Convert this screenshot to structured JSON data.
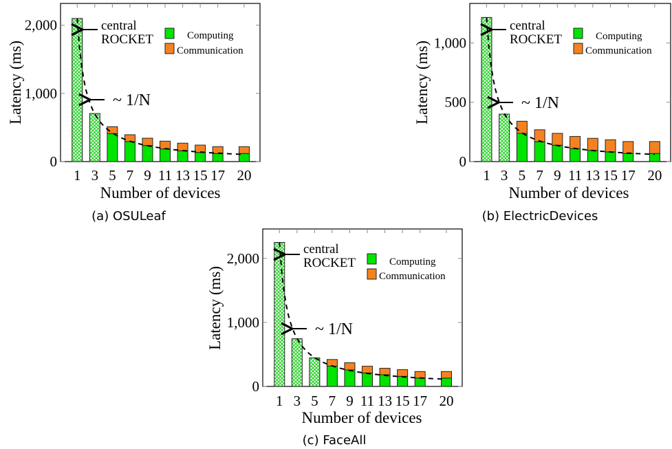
{
  "colors": {
    "computing": "#00e400",
    "communication": "#f58220",
    "hatch": "#2ad42a",
    "edge": "#222222"
  },
  "chart_data": [
    {
      "type": "bar",
      "stacked": true,
      "caption": "(a) OSULeaf",
      "xlabel": "Number of devices",
      "ylabel": "Latency (ms)",
      "categories": [
        "1",
        "3",
        "5",
        "7",
        "9",
        "11",
        "13",
        "15",
        "17",
        "20"
      ],
      "x": [
        1,
        3,
        5,
        7,
        9,
        11,
        13,
        15,
        17,
        20
      ],
      "xlim": [
        -0.9,
        21.8
      ],
      "ylim": [
        0,
        2320
      ],
      "yticks": [
        0,
        1000,
        2000
      ],
      "ytick_labels": [
        "0",
        "1,000",
        "2,000"
      ],
      "series": [
        {
          "name": "Computing",
          "values": [
            2100,
            705,
            411,
            293,
            235,
            185,
            158,
            134,
            118,
            118
          ]
        },
        {
          "name": "Communication",
          "values": [
            0,
            0,
            101,
            101,
            108,
            115,
            112,
            108,
            101,
            101
          ]
        }
      ],
      "centralized_count": 2,
      "central_total": 2100,
      "legend": [
        "Computing",
        "Communication"
      ],
      "legend_position": "top-right",
      "annotations": [
        {
          "text_lines": [
            "central",
            "ROCKET"
          ],
          "target": "bar-1"
        },
        {
          "text": "~ 1/N",
          "target": "bar-3"
        }
      ],
      "trend_line": "dashed ~1/N curve through bar tops"
    },
    {
      "type": "bar",
      "stacked": true,
      "caption": "(b) ElectricDevices",
      "xlabel": "Number of devices",
      "ylabel": "Latency (ms)",
      "categories": [
        "1",
        "3",
        "5",
        "7",
        "9",
        "11",
        "13",
        "15",
        "17",
        "20"
      ],
      "x": [
        1,
        3,
        5,
        7,
        9,
        11,
        13,
        15,
        17,
        20
      ],
      "xlim": [
        -0.9,
        21.8
      ],
      "ylim": [
        0,
        1333
      ],
      "yticks": [
        0,
        500,
        1000
      ],
      "ytick_labels": [
        "0",
        "500",
        "1,000"
      ],
      "series": [
        {
          "name": "Computing",
          "values": [
            1215,
            400,
            238,
            167,
            138,
            109,
            94,
            82,
            68,
            68
          ]
        },
        {
          "name": "Communication",
          "values": [
            0,
            0,
            102,
            101,
            100,
            103,
            102,
            102,
            101,
            101
          ]
        }
      ],
      "centralized_count": 2,
      "central_total": 1215,
      "legend": [
        "Computing",
        "Communication"
      ],
      "legend_position": "top-right",
      "annotations": [
        {
          "text_lines": [
            "central",
            "ROCKET"
          ],
          "target": "bar-1"
        },
        {
          "text": "~ 1/N",
          "target": "bar-3"
        }
      ],
      "trend_line": "dashed ~1/N curve through bar tops"
    },
    {
      "type": "bar",
      "stacked": true,
      "caption": "(c) FaceAll",
      "xlabel": "Number of devices",
      "ylabel": "Latency (ms)",
      "categories": [
        "1",
        "3",
        "5",
        "7",
        "9",
        "11",
        "13",
        "15",
        "17",
        "20"
      ],
      "x": [
        1,
        3,
        5,
        7,
        9,
        11,
        13,
        15,
        17,
        20
      ],
      "xlim": [
        -0.9,
        21.8
      ],
      "ylim": [
        0,
        2460
      ],
      "yticks": [
        0,
        1000,
        2000
      ],
      "ytick_labels": [
        "0",
        "1,000",
        "2,000"
      ],
      "series": [
        {
          "name": "Computing",
          "values": [
            2250,
            745,
            446,
            317,
            258,
            210,
            183,
            158,
            130,
            130
          ]
        },
        {
          "name": "Communication",
          "values": [
            0,
            0,
            0,
            104,
            112,
            106,
            101,
            104,
            103,
            103
          ]
        }
      ],
      "centralized_count": 3,
      "central_total": 2250,
      "legend": [
        "Computing",
        "Communication"
      ],
      "legend_position": "top-right",
      "annotations": [
        {
          "text_lines": [
            "central",
            "ROCKET"
          ],
          "target": "bar-1"
        },
        {
          "text": "~ 1/N",
          "target": "bar-3"
        }
      ],
      "trend_line": "dashed ~1/N curve through bar tops"
    }
  ]
}
